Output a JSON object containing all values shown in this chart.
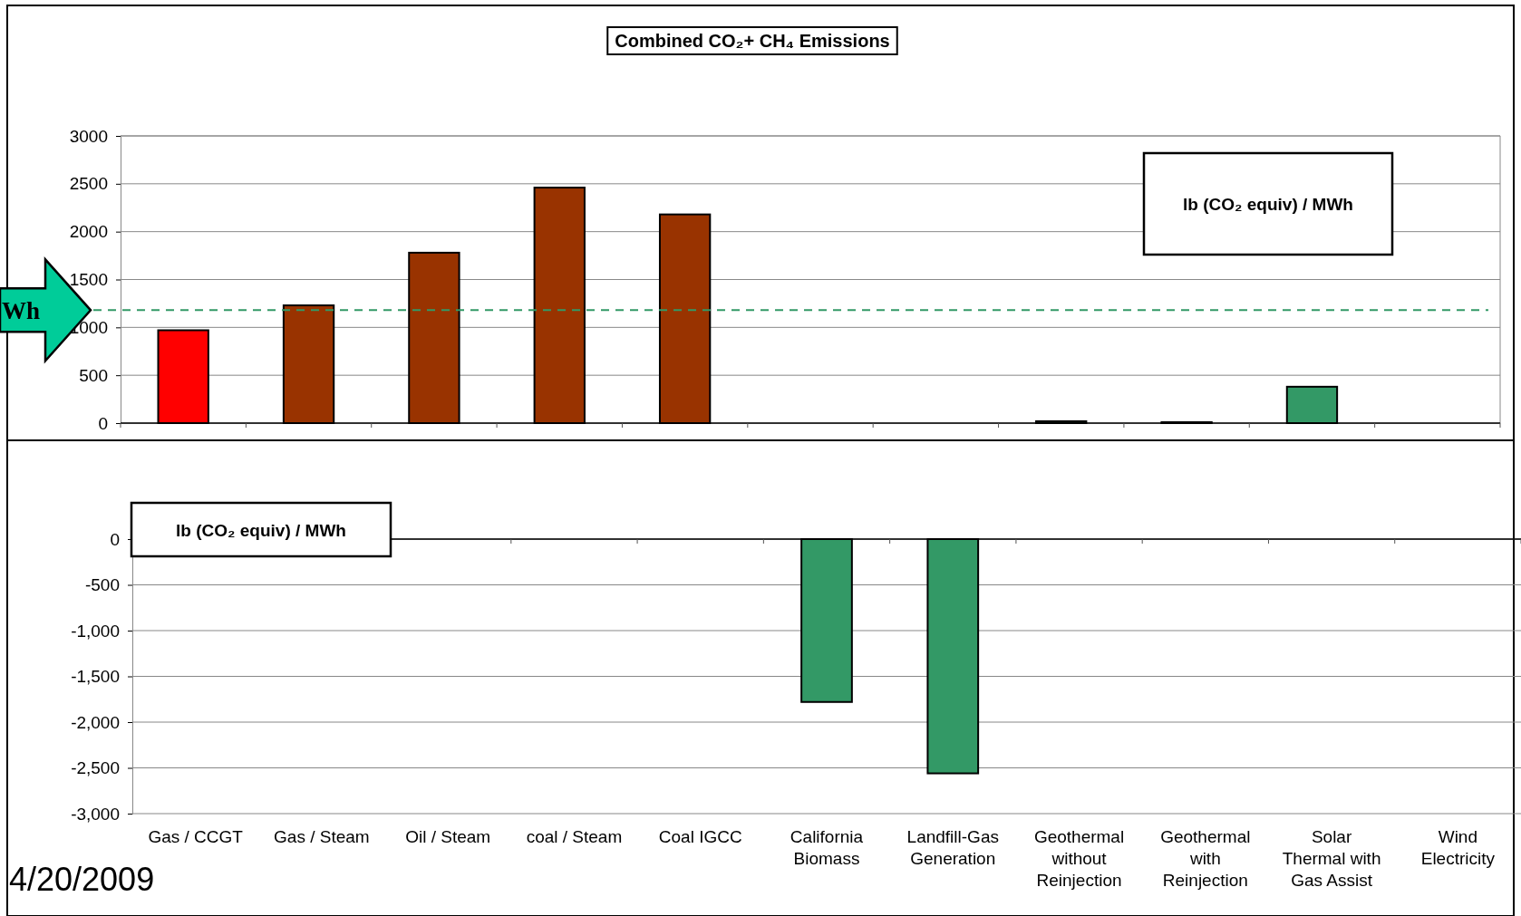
{
  "chart_data": [
    {
      "type": "bar",
      "title": "Combined CO₂+ CH₄ Emissions",
      "categories": [
        null,
        null,
        null,
        null,
        null,
        null,
        null,
        null,
        null,
        null,
        null
      ],
      "values": [
        970,
        1230,
        1780,
        2460,
        2180,
        0,
        0,
        20,
        10,
        380,
        0
      ],
      "colors": [
        "#ff0000",
        "#993300",
        "#993300",
        "#993300",
        "#993300",
        "#339966",
        "#339966",
        "#339966",
        "#339966",
        "#339966",
        "#339966"
      ],
      "ylim": [
        0,
        3000
      ],
      "yticks": [
        0,
        500,
        1000,
        1500,
        2000,
        2500,
        3000
      ],
      "grid": "y",
      "tick_labels": "y",
      "ref_lines": [
        {
          "axis": "y",
          "value": 1180,
          "label": "Wh",
          "color": "#339966",
          "line_style": "dashed"
        }
      ],
      "annotations": [
        "lb (CO₂ equiv) / MWh"
      ]
    },
    {
      "type": "bar",
      "categories": [
        "Gas / CCGT",
        "Gas / Steam",
        "Oil / Steam",
        "coal / Steam",
        "Coal  IGCC",
        "California Biomass",
        "Landfill-Gas Generation",
        "Geothermal without Reinjection",
        "Geothermal with Reinjection",
        "Solar Thermal with Gas Assist",
        "Wind Electricity"
      ],
      "values": [
        0,
        0,
        0,
        0,
        0,
        -1780,
        -2560,
        0,
        0,
        0,
        0
      ],
      "colors": [
        "#339966",
        "#339966",
        "#339966",
        "#339966",
        "#339966",
        "#339966",
        "#339966",
        "#339966",
        "#339966",
        "#339966",
        "#339966"
      ],
      "ylim": [
        -3000,
        0
      ],
      "yticks": [
        0,
        -500,
        {
          "value": -1000,
          "label": "-1,000"
        },
        {
          "value": -1500,
          "label": "-1,500"
        },
        {
          "value": -2000,
          "label": "-2,000"
        },
        {
          "value": -2500,
          "label": "-2,500"
        },
        {
          "value": -3000,
          "label": "-3,000"
        }
      ],
      "grid": "y",
      "annotations": [
        "lb (CO₂ equiv) / MWh",
        "4/20/2009"
      ]
    }
  ]
}
